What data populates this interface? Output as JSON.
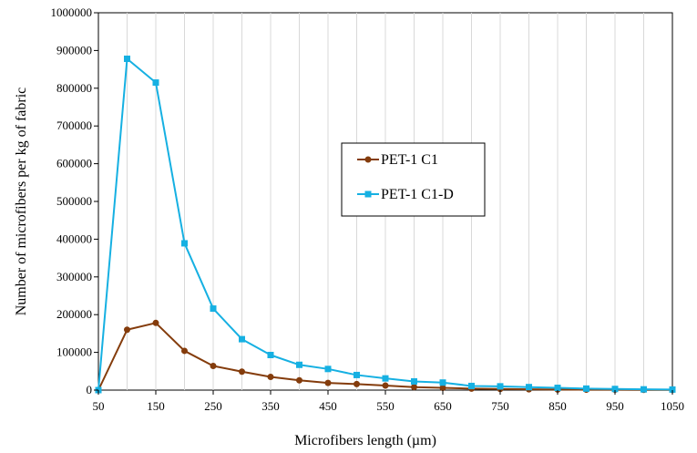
{
  "chart_data": {
    "type": "line",
    "title": "",
    "xlabel": "Microfibers length (µm)",
    "ylabel": "Number of microfibers per kg of fabric",
    "x": [
      50,
      100,
      150,
      200,
      250,
      300,
      350,
      400,
      450,
      500,
      550,
      600,
      650,
      700,
      750,
      800,
      850,
      900,
      950,
      1000,
      1050
    ],
    "xlim": [
      50,
      1050
    ],
    "ylim": [
      0,
      1000000
    ],
    "xticks": [
      50,
      150,
      250,
      350,
      450,
      550,
      650,
      750,
      850,
      950,
      1050
    ],
    "xtick_labels": [
      "50",
      "150",
      "250",
      "350",
      "450",
      "550",
      "650",
      "750",
      "850",
      "950",
      "1050"
    ],
    "yticks": [
      0,
      100000,
      200000,
      300000,
      400000,
      500000,
      600000,
      700000,
      800000,
      900000,
      1000000
    ],
    "ytick_labels": [
      "0",
      "100000",
      "200000",
      "300000",
      "400000",
      "500000",
      "600000",
      "700000",
      "800000",
      "900000",
      "1000000"
    ],
    "grid": "vertical",
    "legend_position": "center-right",
    "series": [
      {
        "name": "PET-1 C1",
        "color": "#843c0c",
        "marker": "circle",
        "values": [
          0,
          160000,
          178000,
          104000,
          64000,
          49000,
          35000,
          26000,
          19000,
          16000,
          12000,
          8000,
          6000,
          4000,
          3000,
          2000,
          1500,
          1000,
          1000,
          500,
          500
        ]
      },
      {
        "name": "PET-1 C1-D",
        "color": "#16b0e2",
        "marker": "square",
        "values": [
          0,
          878000,
          815000,
          389000,
          216000,
          135000,
          93000,
          67000,
          56000,
          40000,
          31000,
          23000,
          20000,
          11000,
          10000,
          8000,
          6000,
          4000,
          3000,
          2000,
          1500
        ]
      }
    ]
  }
}
